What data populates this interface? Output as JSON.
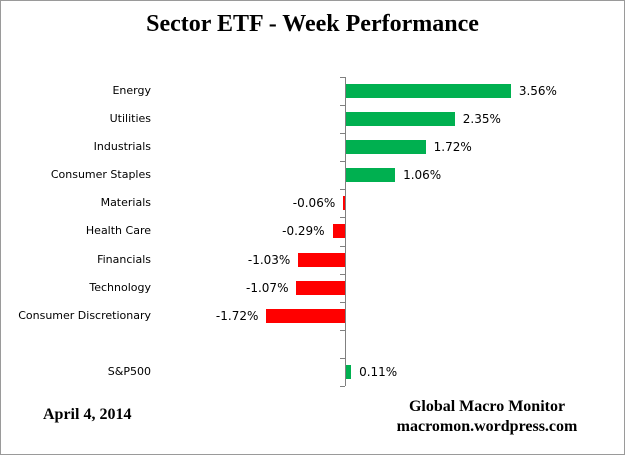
{
  "title": "Sector ETF - Week Performance",
  "footer": {
    "date": "April 4, 2014",
    "source_line1": "Global Macro Monitor",
    "source_line2": "macromon.wordpress.com"
  },
  "colors": {
    "positive_bar": "#00B050",
    "negative_bar": "#FF0000",
    "axis": "#808080",
    "frame_border": "#9A9A9A",
    "text": "#000000"
  },
  "chart_data": {
    "type": "bar",
    "orientation": "horizontal",
    "title": "Sector ETF - Week Performance",
    "xlabel": "",
    "ylabel": "",
    "grid": false,
    "legend": false,
    "value_suffix": "%",
    "categories": [
      "Energy",
      "Utilities",
      "Industrials",
      "Consumer Staples",
      "Materials",
      "Health Care",
      "Financials",
      "Technology",
      "Consumer Discretionary",
      "",
      "S&P500"
    ],
    "values": [
      3.56,
      2.35,
      1.72,
      1.06,
      -0.06,
      -0.29,
      -1.03,
      -1.07,
      -1.72,
      null,
      0.11
    ],
    "value_labels": [
      "3.56%",
      "2.35%",
      "1.72%",
      "1.06%",
      "-0.06%",
      "-0.29%",
      "-1.03%",
      "-1.07%",
      "-1.72%",
      "",
      "0.11%"
    ],
    "bar_color_rule": "green if positive, red if negative",
    "value_label_position": "outside end of bar",
    "xlim": [
      -2.0,
      6.0
    ]
  }
}
